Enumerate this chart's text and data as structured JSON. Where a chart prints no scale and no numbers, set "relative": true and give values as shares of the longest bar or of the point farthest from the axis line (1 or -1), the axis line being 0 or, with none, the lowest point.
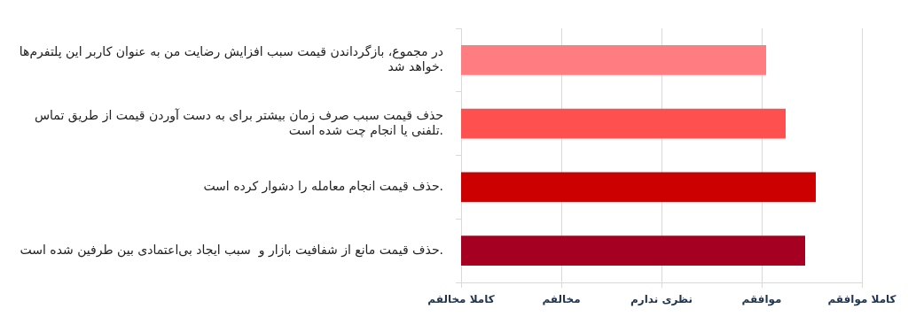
{
  "chart_data": {
    "type": "bar",
    "orientation": "horizontal",
    "relative": true,
    "categories": [
      "در مجموع، بازگرداندن قیمت سبب افزایش رضایت من به عنوان کاربر این پلتفرم‌ها خواهد شد.",
      "حذف قیمت سبب صرف زمان بیشتر برای به دست آوردن قیمت از طریق تماس تلفنی یا انجام چت شده است.",
      "حذف قیمت انجام معامله را دشوار کرده است.",
      "حذف قیمت مانع از شفافیت بازار و  سبب ایجاد بی‌اعتمادی بین طرفین شده است."
    ],
    "values": [
      0.86,
      0.915,
      1,
      0.97
    ],
    "colors": [
      "#ff7c80",
      "#ff5050",
      "#cc0000",
      "#a50021"
    ],
    "annotations": [
      "کاملا مخالفم",
      "مخالفم",
      "نظری ندارم",
      "موافقم",
      "کاملا موافقم"
    ],
    "grid": "x",
    "legend": false
  }
}
